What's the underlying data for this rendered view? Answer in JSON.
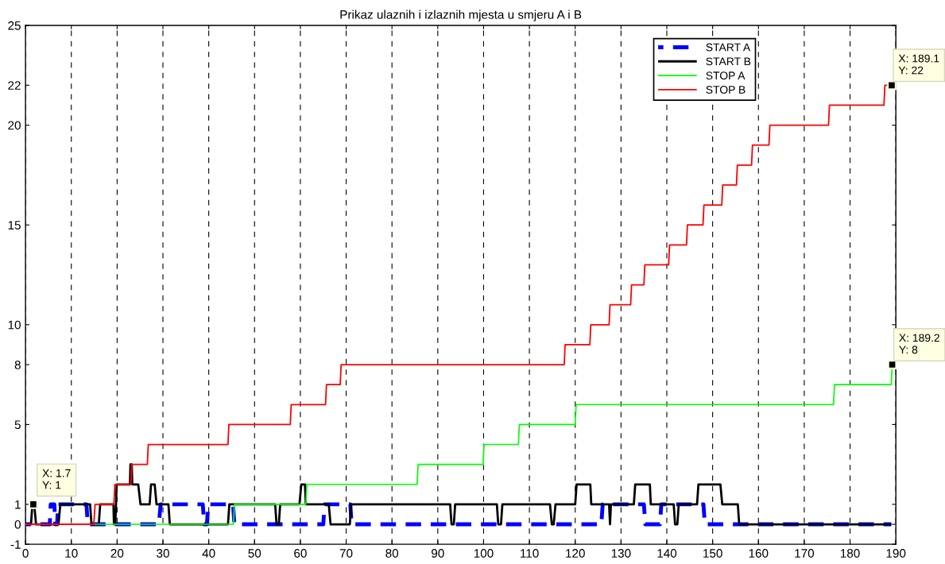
{
  "chart_data": {
    "type": "line",
    "title": "Prikaz ulaznih i izlaznih mjesta u smjeru A i B",
    "xlim": [
      0,
      190
    ],
    "xticks": [
      0,
      10,
      20,
      30,
      40,
      50,
      60,
      70,
      80,
      90,
      100,
      110,
      120,
      130,
      140,
      150,
      160,
      170,
      180,
      190
    ],
    "ylim": [
      -1,
      25
    ],
    "yticks": [
      -1,
      0,
      1,
      5,
      8,
      10,
      15,
      20,
      22,
      25
    ],
    "grid": "x",
    "legend": "top right",
    "series": [
      {
        "name": "START A",
        "color": "#0000ff",
        "line_style": "dashed",
        "x": [
          0,
          5.3,
          5.5,
          6.3,
          6.5,
          6.9,
          7.1,
          13.3,
          13.6,
          29.1,
          29.5,
          38.7,
          39.0,
          39.6,
          39.9,
          45.3,
          45.6,
          65.0,
          65.3,
          70.9,
          71.2,
          125.7,
          126.0,
          135.0,
          135.3,
          138.5,
          138.8,
          148.0,
          148.3,
          189
        ],
        "values": [
          0,
          0,
          1,
          1,
          0,
          0,
          1,
          1,
          0,
          0,
          1,
          1,
          0,
          0,
          1,
          1,
          0,
          0,
          1,
          1,
          0,
          0,
          1,
          1,
          0,
          0,
          1,
          1,
          0,
          0
        ]
      },
      {
        "name": "START B",
        "color": "#000000",
        "line_style": "solid",
        "x": [
          0,
          1.2,
          1.5,
          1.9,
          2.3,
          7.2,
          7.6,
          14.1,
          14.4,
          16.0,
          16.3,
          19.2,
          19.3,
          19.6,
          19.9,
          22.8,
          22.9,
          23.2,
          23.3,
          24.6,
          25.1,
          27.1,
          27.4,
          28.2,
          28.6,
          31.2,
          31.5,
          44.2,
          44.5,
          54.5,
          54.8,
          55.3,
          55.6,
          59.8,
          60.2,
          61.0,
          61.2,
          66.2,
          66.6,
          70.8,
          71.1,
          92.7,
          93.0,
          93.5,
          93.8,
          102.9,
          103.2,
          103.8,
          104.1,
          114.5,
          114.9,
          115.3,
          115.7,
          120.0,
          120.3,
          123.3,
          123.5,
          127.4,
          127.6,
          127.8,
          132.8,
          133.1,
          136.3,
          136.5,
          141.5,
          141.8,
          142.3,
          142.6,
          146.6,
          146.9,
          151.7,
          152.1,
          155.5,
          155.8,
          189
        ],
        "values": [
          0,
          0,
          1,
          1,
          0,
          0,
          1,
          1,
          0,
          0,
          1,
          1,
          0,
          0,
          2,
          2,
          3,
          3,
          2,
          2,
          1,
          1,
          2,
          2,
          1,
          1,
          0,
          0,
          1,
          1,
          0,
          0,
          1,
          1,
          2,
          2,
          1,
          1,
          0,
          0,
          1,
          1,
          0,
          0,
          1,
          1,
          0,
          0,
          1,
          1,
          0,
          0,
          1,
          1,
          2,
          2,
          1,
          1,
          0,
          1,
          1,
          2,
          2,
          1,
          1,
          0,
          0,
          1,
          1,
          2,
          2,
          1,
          1,
          0,
          0
        ]
      },
      {
        "name": "STOP A",
        "color": "#00ff00",
        "line_style": "solid",
        "x": [
          0,
          45.4,
          45.6,
          61.2,
          61.4,
          85.5,
          85.7,
          99.9,
          100.1,
          107.6,
          107.8,
          120.0,
          120.2,
          176.4,
          176.6,
          189.0,
          189.2
        ],
        "values": [
          0,
          0,
          1,
          1,
          2,
          2,
          3,
          3,
          4,
          4,
          5,
          5,
          6,
          6,
          7,
          7,
          8
        ]
      },
      {
        "name": "STOP B",
        "color": "#ff0000",
        "line_style": "solid",
        "x": [
          0,
          14.9,
          15.2,
          19.3,
          19.5,
          23.0,
          23.2,
          26.6,
          26.8,
          44.2,
          44.4,
          57.8,
          58.0,
          65.5,
          65.7,
          68.7,
          68.9,
          117.6,
          117.8,
          123.2,
          123.4,
          127.4,
          127.6,
          132.1,
          132.3,
          135.0,
          135.2,
          140.4,
          140.6,
          144.3,
          144.5,
          147.9,
          148.1,
          152.0,
          152.2,
          155.2,
          155.4,
          158.5,
          158.7,
          162.3,
          162.5,
          175.3,
          175.5,
          187.4,
          187.6,
          189.1
        ],
        "values": [
          0,
          0,
          1,
          1,
          2,
          2,
          3,
          3,
          4,
          4,
          5,
          5,
          6,
          6,
          7,
          7,
          8,
          8,
          9,
          9,
          10,
          10,
          11,
          11,
          12,
          12,
          13,
          13,
          14,
          14,
          15,
          15,
          16,
          16,
          17,
          17,
          18,
          18,
          19,
          19,
          20,
          20,
          21,
          21,
          22,
          22
        ]
      }
    ],
    "annotations": [
      {
        "text": "X: 1.7\nY: 1",
        "x": 1.7,
        "y": 1
      },
      {
        "text": "X: 189.1\nY: 22",
        "x": 189.1,
        "y": 22
      },
      {
        "text": "X: 189.2\nY: 8",
        "x": 189.2,
        "y": 8
      }
    ]
  }
}
